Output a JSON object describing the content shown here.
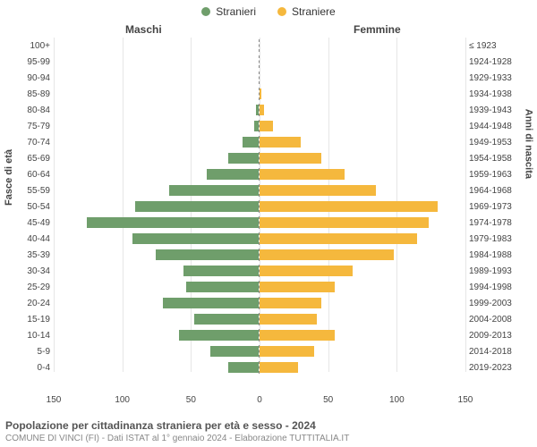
{
  "legend": {
    "male": "Stranieri",
    "female": "Straniere"
  },
  "columns": {
    "male": "Maschi",
    "female": "Femmine"
  },
  "axis": {
    "left": "Fasce di età",
    "right": "Anni di nascita"
  },
  "colors": {
    "male": "#6f9e6b",
    "female": "#f5b83d",
    "grid": "#e6e6e6",
    "center": "#888888",
    "background": "#ffffff",
    "text": "#444444"
  },
  "chart": {
    "type": "population-pyramid",
    "xlim": 150,
    "xticks": [
      150,
      100,
      50,
      0,
      50,
      100,
      150
    ],
    "bar_gap": 2,
    "font_size": 10,
    "rows": [
      {
        "age": "100+",
        "birth": "≤ 1923",
        "m": 0,
        "f": 0
      },
      {
        "age": "95-99",
        "birth": "1924-1928",
        "m": 0,
        "f": 0
      },
      {
        "age": "90-94",
        "birth": "1929-1933",
        "m": 0,
        "f": 0
      },
      {
        "age": "85-89",
        "birth": "1934-1938",
        "m": 0,
        "f": 1
      },
      {
        "age": "80-84",
        "birth": "1939-1943",
        "m": 2,
        "f": 3
      },
      {
        "age": "75-79",
        "birth": "1944-1948",
        "m": 3,
        "f": 10
      },
      {
        "age": "70-74",
        "birth": "1949-1953",
        "m": 12,
        "f": 30
      },
      {
        "age": "65-69",
        "birth": "1954-1958",
        "m": 22,
        "f": 45
      },
      {
        "age": "60-64",
        "birth": "1959-1963",
        "m": 38,
        "f": 62
      },
      {
        "age": "55-59",
        "birth": "1964-1968",
        "m": 65,
        "f": 85
      },
      {
        "age": "50-54",
        "birth": "1969-1973",
        "m": 90,
        "f": 130
      },
      {
        "age": "45-49",
        "birth": "1974-1978",
        "m": 125,
        "f": 123
      },
      {
        "age": "40-44",
        "birth": "1979-1983",
        "m": 92,
        "f": 115
      },
      {
        "age": "35-39",
        "birth": "1984-1988",
        "m": 75,
        "f": 98
      },
      {
        "age": "30-34",
        "birth": "1989-1993",
        "m": 55,
        "f": 68
      },
      {
        "age": "25-29",
        "birth": "1994-1998",
        "m": 53,
        "f": 55
      },
      {
        "age": "20-24",
        "birth": "1999-2003",
        "m": 70,
        "f": 45
      },
      {
        "age": "15-19",
        "birth": "2004-2008",
        "m": 47,
        "f": 42
      },
      {
        "age": "10-14",
        "birth": "2009-2013",
        "m": 58,
        "f": 55
      },
      {
        "age": "5-9",
        "birth": "2014-2018",
        "m": 35,
        "f": 40
      },
      {
        "age": "0-4",
        "birth": "2019-2023",
        "m": 22,
        "f": 28
      }
    ]
  },
  "footer": {
    "title": "Popolazione per cittadinanza straniera per età e sesso - 2024",
    "subtitle": "COMUNE DI VINCI (FI) - Dati ISTAT al 1° gennaio 2024 - Elaborazione TUTTITALIA.IT"
  }
}
